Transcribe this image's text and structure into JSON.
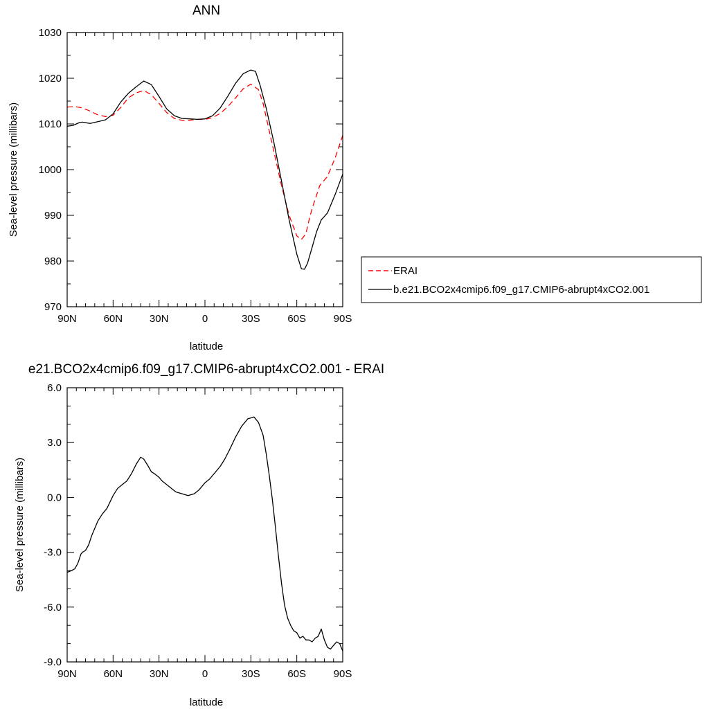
{
  "chart_data": [
    {
      "type": "line",
      "title": "ANN",
      "xlabel": "latitude",
      "ylabel": "Sea-level pressure (millibars)",
      "xticks": [
        "90N",
        "60N",
        "30N",
        "0",
        "30S",
        "60S",
        "90S"
      ],
      "xtick_values": [
        90,
        60,
        30,
        0,
        -30,
        -60,
        -90
      ],
      "yticks": [
        "970",
        "980",
        "990",
        "1000",
        "1010",
        "1020",
        "1030"
      ],
      "ytick_values": [
        970,
        980,
        990,
        1000,
        1010,
        1020,
        1030
      ],
      "xlim": [
        90,
        -90
      ],
      "ylim": [
        970,
        1030
      ],
      "legend": {
        "placement": "right",
        "entries": [
          "ERAI",
          "b.e21.BCO2x4cmip6.f09_g17.CMIP6-abrupt4xCO2.001"
        ]
      },
      "series": [
        {
          "name": "ERAI",
          "color": "#ff0000",
          "style": "dashed",
          "x": [
            90,
            85,
            80,
            75,
            70,
            65,
            60,
            55,
            50,
            45,
            40,
            35,
            30,
            25,
            20,
            15,
            10,
            5,
            0,
            -5,
            -10,
            -15,
            -20,
            -25,
            -30,
            -35,
            -38,
            -40,
            -45,
            -50,
            -55,
            -60,
            -63,
            -66,
            -68,
            -70,
            -75,
            -80,
            -85,
            -90
          ],
          "y": [
            1013.7,
            1013.8,
            1013.5,
            1012.8,
            1012.0,
            1011.6,
            1011.9,
            1013.6,
            1015.7,
            1016.8,
            1017.3,
            1016.4,
            1014.5,
            1012.5,
            1011.2,
            1010.8,
            1010.8,
            1011.0,
            1011.0,
            1011.4,
            1012.3,
            1013.8,
            1015.7,
            1017.7,
            1018.7,
            1017.5,
            1014.5,
            1011.5,
            1004.0,
            996.5,
            990.0,
            985.5,
            984.7,
            986.0,
            989.0,
            991.5,
            996.5,
            998.5,
            1002.5,
            1007.5
          ]
        },
        {
          "name": "b.e21.BCO2x4cmip6.f09_g17.CMIP6-abrupt4xCO2.001",
          "color": "#000000",
          "style": "solid",
          "x": [
            90,
            86,
            82,
            80,
            75,
            70,
            65,
            60,
            55,
            50,
            45,
            40,
            35,
            30,
            25,
            20,
            15,
            10,
            5,
            0,
            -5,
            -10,
            -15,
            -20,
            -25,
            -30,
            -33,
            -36,
            -40,
            -45,
            -50,
            -55,
            -60,
            -63,
            -65,
            -67,
            -70,
            -73,
            -76,
            -80,
            -85,
            -90
          ],
          "y": [
            1009.5,
            1009.7,
            1010.3,
            1010.4,
            1010.1,
            1010.5,
            1010.9,
            1012.2,
            1014.8,
            1016.7,
            1018.1,
            1019.4,
            1018.6,
            1016.0,
            1013.3,
            1011.8,
            1011.2,
            1011.1,
            1011.0,
            1011.1,
            1011.8,
            1013.5,
            1016.1,
            1018.9,
            1021.0,
            1021.8,
            1021.5,
            1018.5,
            1013.5,
            1006.0,
            997.5,
            989.0,
            981.5,
            978.3,
            978.2,
            979.5,
            983.0,
            986.5,
            989.0,
            990.5,
            994.5,
            999.0
          ]
        }
      ]
    },
    {
      "type": "line",
      "title": "e21.BCO2x4cmip6.f09_g17.CMIP6-abrupt4xCO2.001 - ERAI",
      "xlabel": "latitude",
      "ylabel": "Sea-level pressure (millibars)",
      "xticks": [
        "90N",
        "60N",
        "30N",
        "0",
        "30S",
        "60S",
        "90S"
      ],
      "xtick_values": [
        90,
        60,
        30,
        0,
        -30,
        -60,
        -90
      ],
      "yticks": [
        "-9.0",
        "-6.0",
        "-3.0",
        "0.0",
        "3.0",
        "6.0"
      ],
      "ytick_values": [
        -9,
        -6,
        -3,
        0,
        3,
        6
      ],
      "xlim": [
        90,
        -90
      ],
      "ylim": [
        -9,
        6
      ],
      "series": [
        {
          "color": "#000000",
          "style": "solid",
          "x": [
            90,
            87,
            85,
            83,
            81,
            80,
            78,
            76,
            74,
            72,
            70,
            67,
            64,
            60,
            57,
            54,
            51,
            48,
            45,
            42,
            40,
            37,
            35,
            33,
            30,
            28,
            25,
            22,
            19,
            15,
            11,
            7,
            4,
            2,
            0,
            -3,
            -6,
            -10,
            -13,
            -16,
            -20,
            -24,
            -28,
            -32,
            -35,
            -38,
            -40,
            -42,
            -44,
            -46,
            -48,
            -50,
            -52,
            -54,
            -56,
            -58,
            -60,
            -62,
            -64,
            -66,
            -68,
            -70,
            -72,
            -74,
            -76,
            -78,
            -80,
            -82,
            -84,
            -86,
            -88,
            -90
          ],
          "y": [
            -4.1,
            -4.0,
            -3.9,
            -3.6,
            -3.1,
            -3.0,
            -2.9,
            -2.6,
            -2.1,
            -1.7,
            -1.3,
            -0.9,
            -0.6,
            0.1,
            0.5,
            0.7,
            0.9,
            1.3,
            1.8,
            2.2,
            2.1,
            1.7,
            1.4,
            1.3,
            1.1,
            0.9,
            0.7,
            0.5,
            0.3,
            0.2,
            0.1,
            0.2,
            0.4,
            0.6,
            0.8,
            1.0,
            1.3,
            1.7,
            2.1,
            2.6,
            3.3,
            3.9,
            4.3,
            4.4,
            4.1,
            3.4,
            2.4,
            1.2,
            -0.1,
            -1.6,
            -3.2,
            -4.7,
            -5.9,
            -6.6,
            -7.0,
            -7.3,
            -7.4,
            -7.7,
            -7.6,
            -7.8,
            -7.8,
            -7.9,
            -7.7,
            -7.6,
            -7.2,
            -7.8,
            -8.2,
            -8.3,
            -8.1,
            -7.9,
            -8.0,
            -8.4
          ]
        }
      ]
    }
  ]
}
